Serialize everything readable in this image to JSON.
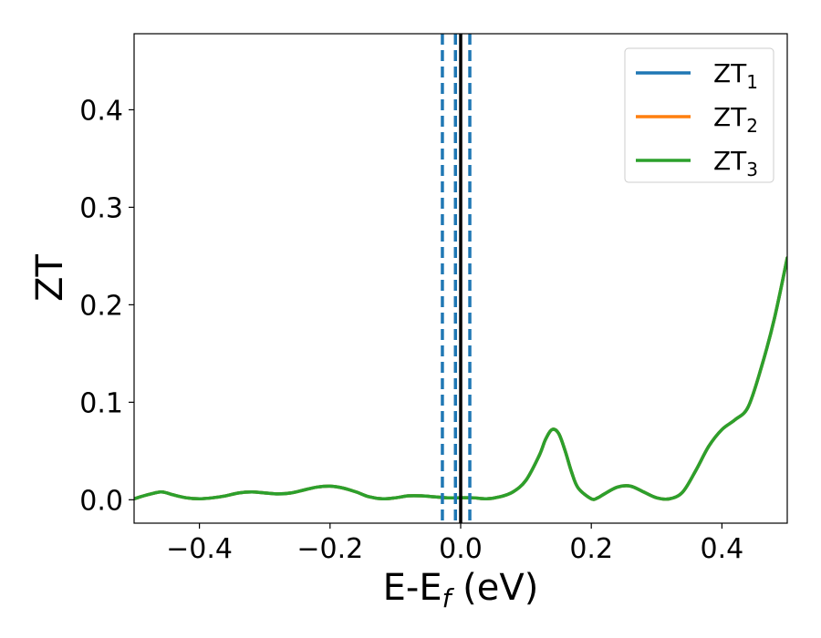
{
  "chart_data": {
    "type": "line",
    "xlabel": "E-E",
    "xlabel_sub": "f",
    "xlabel_unit": " (eV)",
    "ylabel": "ZT",
    "xlim": [
      -0.5,
      0.5
    ],
    "ylim": [
      -0.024,
      0.478
    ],
    "x_ticks": [
      -0.4,
      -0.2,
      0.0,
      0.2,
      0.4
    ],
    "x_tick_labels": [
      "−0.4",
      "−0.2",
      "0.0",
      "0.2",
      "0.4"
    ],
    "y_ticks": [
      0.0,
      0.1,
      0.2,
      0.3,
      0.4
    ],
    "y_tick_labels": [
      "0.0",
      "0.1",
      "0.2",
      "0.3",
      "0.4"
    ],
    "grid": false,
    "legend_position": "top-right",
    "vertical_lines": [
      {
        "x": -0.028,
        "style": "dashed",
        "color": "#1f77b4"
      },
      {
        "x": -0.008,
        "style": "dashed",
        "color": "#1f77b4"
      },
      {
        "x": 0.014,
        "style": "dashed",
        "color": "#1f77b4"
      },
      {
        "x": 0.0,
        "style": "solid",
        "color": "#000000"
      }
    ],
    "x": [
      -0.5,
      -0.48,
      -0.46,
      -0.45,
      -0.44,
      -0.42,
      -0.4,
      -0.38,
      -0.36,
      -0.34,
      -0.32,
      -0.3,
      -0.28,
      -0.26,
      -0.24,
      -0.22,
      -0.2,
      -0.18,
      -0.16,
      -0.14,
      -0.12,
      -0.1,
      -0.08,
      -0.06,
      -0.04,
      -0.02,
      0.0,
      0.02,
      0.04,
      0.06,
      0.08,
      0.1,
      0.12,
      0.13,
      0.14,
      0.15,
      0.16,
      0.17,
      0.18,
      0.2,
      0.21,
      0.22,
      0.24,
      0.26,
      0.28,
      0.3,
      0.32,
      0.34,
      0.36,
      0.38,
      0.4,
      0.42,
      0.44,
      0.46,
      0.48,
      0.5
    ],
    "series": [
      {
        "name": "ZT",
        "sub": "1",
        "color": "#1f77b4",
        "values": [
          0.001,
          0.005,
          0.008,
          0.007,
          0.005,
          0.002,
          0.001,
          0.002,
          0.004,
          0.007,
          0.008,
          0.007,
          0.006,
          0.007,
          0.01,
          0.013,
          0.014,
          0.012,
          0.008,
          0.003,
          0.001,
          0.002,
          0.004,
          0.004,
          0.003,
          0.002,
          0.002,
          0.002,
          0.001,
          0.003,
          0.008,
          0.02,
          0.045,
          0.062,
          0.072,
          0.068,
          0.05,
          0.028,
          0.012,
          0.001,
          0.002,
          0.006,
          0.013,
          0.014,
          0.008,
          0.002,
          0.001,
          0.008,
          0.03,
          0.055,
          0.072,
          0.082,
          0.095,
          0.135,
          0.185,
          0.248
        ]
      },
      {
        "name": "ZT",
        "sub": "2",
        "color": "#ff7f0e",
        "values": [
          0.001,
          0.005,
          0.008,
          0.007,
          0.005,
          0.002,
          0.001,
          0.002,
          0.004,
          0.007,
          0.008,
          0.007,
          0.006,
          0.007,
          0.01,
          0.013,
          0.014,
          0.012,
          0.008,
          0.003,
          0.001,
          0.002,
          0.004,
          0.004,
          0.003,
          0.002,
          0.002,
          0.002,
          0.001,
          0.003,
          0.008,
          0.02,
          0.045,
          0.062,
          0.072,
          0.068,
          0.05,
          0.028,
          0.012,
          0.001,
          0.002,
          0.006,
          0.013,
          0.014,
          0.008,
          0.002,
          0.001,
          0.008,
          0.03,
          0.055,
          0.072,
          0.082,
          0.095,
          0.135,
          0.185,
          0.248
        ]
      },
      {
        "name": "ZT",
        "sub": "3",
        "color": "#2ca02c",
        "values": [
          0.001,
          0.005,
          0.008,
          0.007,
          0.005,
          0.002,
          0.001,
          0.002,
          0.004,
          0.007,
          0.008,
          0.007,
          0.006,
          0.007,
          0.01,
          0.013,
          0.014,
          0.012,
          0.008,
          0.003,
          0.001,
          0.002,
          0.004,
          0.004,
          0.003,
          0.002,
          0.002,
          0.002,
          0.001,
          0.003,
          0.008,
          0.02,
          0.045,
          0.062,
          0.072,
          0.068,
          0.05,
          0.028,
          0.012,
          0.001,
          0.002,
          0.006,
          0.013,
          0.014,
          0.008,
          0.002,
          0.001,
          0.008,
          0.03,
          0.055,
          0.072,
          0.082,
          0.095,
          0.135,
          0.185,
          0.248
        ]
      }
    ]
  }
}
